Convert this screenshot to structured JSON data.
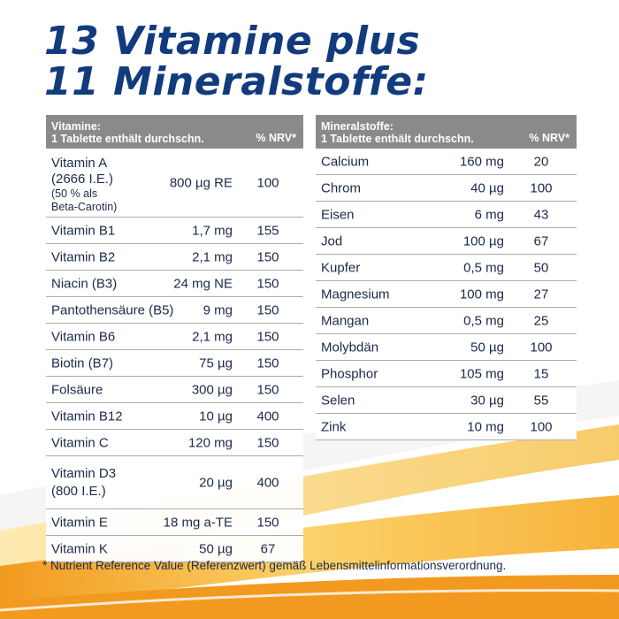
{
  "headline": {
    "line1": "13 Vitamine plus",
    "line2": "11 Mineralstoffe:"
  },
  "vitamins": {
    "header_line1": "Vitamine:",
    "header_line2": "1 Tablette enthält durchschn.",
    "header_nrv": "% NRV*",
    "rows": [
      {
        "name": "Vitamin A",
        "name2": "(2666 I.E.)",
        "name3": "(50 % als",
        "name4": "Beta-Carotin)",
        "amount": "800 µg RE",
        "nrv": "100"
      },
      {
        "name": "Vitamin B1",
        "amount": "1,7 mg",
        "nrv": "155"
      },
      {
        "name": "Vitamin B2",
        "amount": "2,1 mg",
        "nrv": "150"
      },
      {
        "name": "Niacin (B3)",
        "amount": "24 mg NE",
        "nrv": "150"
      },
      {
        "name": "Pantothensäure (B5)",
        "amount": "9 mg",
        "nrv": "150"
      },
      {
        "name": "Vitamin B6",
        "amount": "2,1 mg",
        "nrv": "150"
      },
      {
        "name": "Biotin (B7)",
        "amount": "75 µg",
        "nrv": "150"
      },
      {
        "name": "Folsäure",
        "amount": "300 µg",
        "nrv": "150"
      },
      {
        "name": "Vitamin B12",
        "amount": "10 µg",
        "nrv": "400"
      },
      {
        "name": "Vitamin C",
        "amount": "120 mg",
        "nrv": "150"
      },
      {
        "name": "Vitamin D3",
        "name2": "(800 I.E.)",
        "amount": "20 µg",
        "nrv": "400"
      },
      {
        "name": "Vitamin E",
        "amount": "18 mg a-TE",
        "nrv": "150"
      },
      {
        "name": "Vitamin K",
        "amount": "50 µg",
        "nrv": "67"
      }
    ]
  },
  "minerals": {
    "header_line1": "Mineralstoffe:",
    "header_line2": "1 Tablette enthält durchschn.",
    "header_nrv": "% NRV*",
    "rows": [
      {
        "name": "Calcium",
        "amount": "160 mg",
        "nrv": "20"
      },
      {
        "name": "Chrom",
        "amount": "40 µg",
        "nrv": "100"
      },
      {
        "name": "Eisen",
        "amount": "6 mg",
        "nrv": "43"
      },
      {
        "name": "Jod",
        "amount": "100 µg",
        "nrv": "67"
      },
      {
        "name": "Kupfer",
        "amount": "0,5 mg",
        "nrv": "50"
      },
      {
        "name": "Magnesium",
        "amount": "100 mg",
        "nrv": "27"
      },
      {
        "name": "Mangan",
        "amount": "0,5 mg",
        "nrv": "25"
      },
      {
        "name": "Molybdän",
        "amount": "50 µg",
        "nrv": "100"
      },
      {
        "name": "Phosphor",
        "amount": "105 mg",
        "nrv": "15"
      },
      {
        "name": "Selen",
        "amount": "30 µg",
        "nrv": "55"
      },
      {
        "name": "Zink",
        "amount": "10 mg",
        "nrv": "100"
      }
    ]
  },
  "footnote": "* Nutrient Reference Value (Referenzwert) gemäß Lebensmittelinformationsverordnung.",
  "colors": {
    "headline": "#123b7e",
    "header_bg": "#8a8a8c",
    "accent_orange": "#f5a623",
    "accent_yellow": "#fcd34d"
  }
}
